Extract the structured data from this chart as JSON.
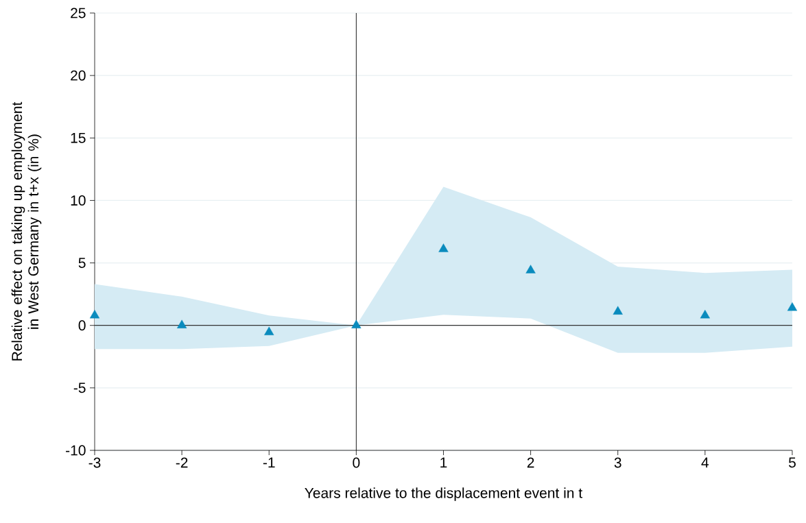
{
  "chart_data": {
    "type": "scatter",
    "xlabel": "Years relative to the displacement event in t",
    "ylabel": "Relative effect on taking up employment in West Germany in t+x (in %)",
    "x": [
      -3,
      -2,
      -1,
      0,
      1,
      2,
      3,
      4,
      5
    ],
    "series": [
      {
        "color": "#0a8bbd",
        "values": [
          0.8,
          0,
          -0.55,
          0,
          6.1,
          4.4,
          1.1,
          0.8,
          1.4
        ],
        "lower": [
          -1.9,
          -1.9,
          -1.65,
          0,
          0.85,
          0.55,
          -2.2,
          -2.2,
          -1.7
        ],
        "upper": [
          3.3,
          2.3,
          0.8,
          0,
          11.1,
          8.65,
          4.7,
          4.2,
          4.45
        ]
      }
    ],
    "marker": "triangle",
    "xlim": [
      -3,
      5
    ],
    "ylim": [
      -10,
      25
    ],
    "xticks": [
      -3,
      -2,
      -1,
      0,
      1,
      2,
      3,
      4,
      5
    ],
    "yticks": [
      -10,
      -5,
      0,
      5,
      10,
      15,
      20,
      25
    ],
    "grid": "y",
    "ref_lines": [
      {
        "axis": "x",
        "value": 0,
        "color": "#000000"
      },
      {
        "axis": "y",
        "value": 0,
        "color": "#333333"
      }
    ]
  }
}
